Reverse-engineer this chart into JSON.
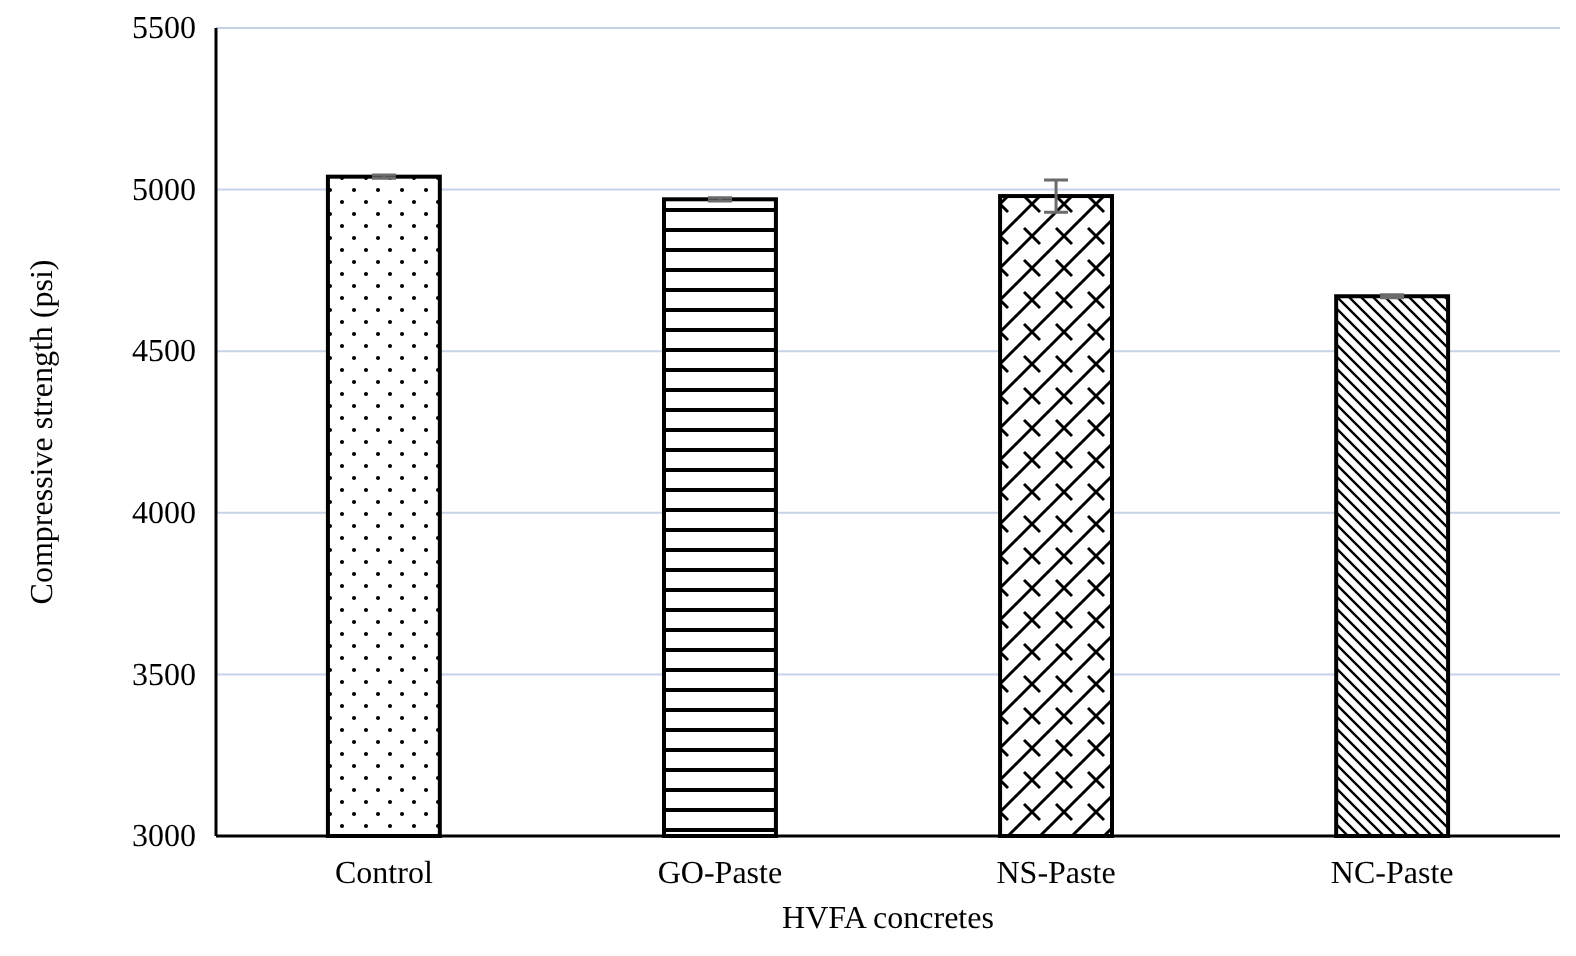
{
  "chart_data": {
    "type": "bar",
    "xlabel": "HVFA concretes",
    "ylabel": "Compressive strength (psi)",
    "categories": [
      "Control",
      "GO-Paste",
      "NS-Paste",
      "NC-Paste"
    ],
    "values": [
      5040,
      4970,
      4980,
      4670
    ],
    "errors": [
      5,
      5,
      50,
      5
    ],
    "color": "#000000",
    "ylim": [
      3000,
      5500
    ],
    "yticks": [
      3000,
      3500,
      4000,
      4500,
      5000,
      5500
    ],
    "grid": "y"
  }
}
